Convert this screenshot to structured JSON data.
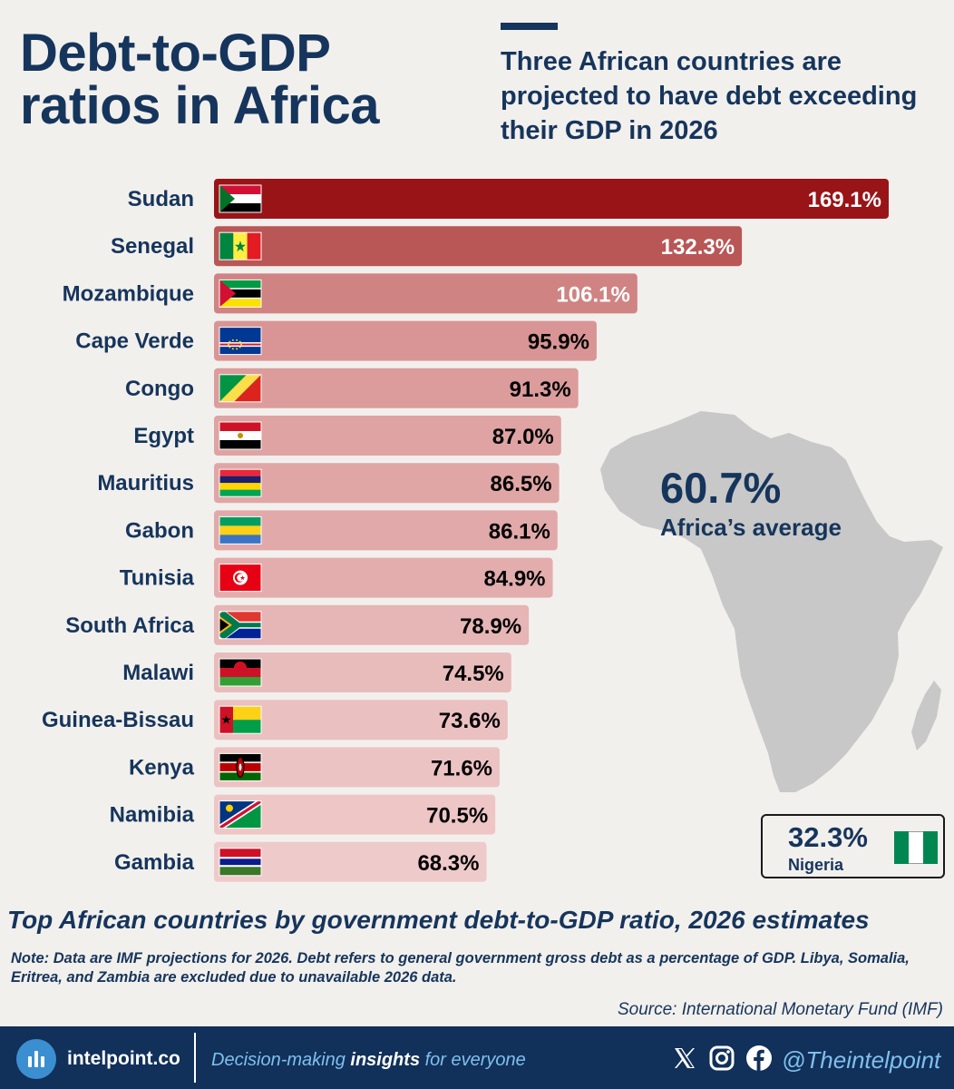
{
  "header": {
    "title_line1": "Debt-to-GDP",
    "title_line2": "ratios in Africa",
    "subtitle": "Three African countries are projected to have debt exceeding their GDP in 2026"
  },
  "average": {
    "value": "60.7%",
    "label": "Africa’s average"
  },
  "nigeria": {
    "value": "32.3%",
    "name": "Nigeria",
    "flag_icon": "nigeria-flag-icon"
  },
  "chart_data": {
    "type": "bar",
    "orientation": "horizontal",
    "categories": [
      "Sudan",
      "Senegal",
      "Mozambique",
      "Cape Verde",
      "Congo",
      "Egypt",
      "Mauritius",
      "Gabon",
      "Tunisia",
      "South Africa",
      "Malawi",
      "Guinea-Bissau",
      "Kenya",
      "Namibia",
      "Gambia"
    ],
    "values": [
      169.1,
      132.3,
      106.1,
      95.9,
      91.3,
      87.0,
      86.5,
      86.1,
      84.9,
      78.9,
      74.5,
      73.6,
      71.6,
      70.5,
      68.3
    ],
    "value_labels": [
      "169.1%",
      "132.3%",
      "106.1%",
      "95.9%",
      "91.3%",
      "87.0%",
      "86.5%",
      "86.1%",
      "84.9%",
      "78.9%",
      "74.5%",
      "73.6%",
      "71.6%",
      "70.5%",
      "68.3%"
    ],
    "bar_colors": [
      "#991417",
      "#b95656",
      "#d08383",
      "#d99595",
      "#dc9c9c",
      "#dfa3a3",
      "#e0a6a6",
      "#e1a9a9",
      "#e3adad",
      "#e6b5b5",
      "#e9bcbc",
      "#ebc0c0",
      "#ecc3c3",
      "#eec6c6",
      "#efcaca"
    ],
    "label_colors": [
      "#ffffff",
      "#ffffff",
      "#ffffff",
      "#000000",
      "#000000",
      "#000000",
      "#000000",
      "#000000",
      "#000000",
      "#000000",
      "#000000",
      "#000000",
      "#000000",
      "#000000",
      "#000000"
    ],
    "flag_icons": [
      "sudan-flag-icon",
      "senegal-flag-icon",
      "mozambique-flag-icon",
      "cape-verde-flag-icon",
      "congo-flag-icon",
      "egypt-flag-icon",
      "mauritius-flag-icon",
      "gabon-flag-icon",
      "tunisia-flag-icon",
      "south-africa-flag-icon",
      "malawi-flag-icon",
      "guinea-bissau-flag-icon",
      "kenya-flag-icon",
      "namibia-flag-icon",
      "gambia-flag-icon"
    ],
    "title": "",
    "xlabel": "",
    "ylabel": "",
    "xlim": [
      0,
      169.1
    ],
    "grid": false,
    "legend": "none"
  },
  "caption": "Top African countries by government debt-to-GDP ratio, 2026 estimates",
  "note": "Note: Data are IMF projections for 2026. Debt refers to general government gross debt as a percentage of GDP. Libya, Somalia, Eritrea, and Zambia are excluded due to unavailable 2026 data.",
  "source": "Source: International Monetary Fund (IMF)",
  "footer": {
    "brand": "intelpoint.co",
    "tagline_pre": "Decision-making ",
    "tagline_bold": "insights",
    "tagline_post": " for everyone",
    "handle": "@Theintelpoint",
    "icons": [
      "x-icon",
      "instagram-icon",
      "facebook-icon"
    ]
  },
  "colors": {
    "navy": "#16355c",
    "footer": "#11305a",
    "background": "#f2f0ed",
    "map": "#c8c8c8"
  }
}
